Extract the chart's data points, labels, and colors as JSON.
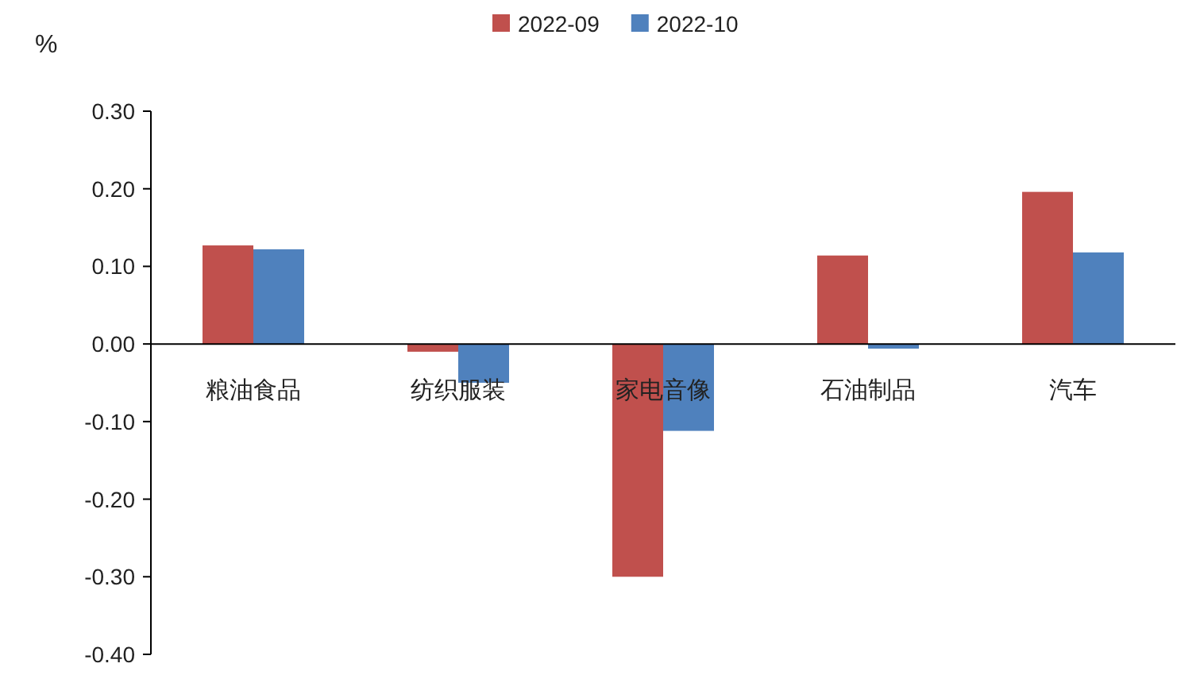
{
  "chart_data": {
    "type": "bar",
    "ylabel": "%",
    "categories": [
      "粮油食品",
      "纺织服装",
      "家电音像",
      "石油制品",
      "汽车"
    ],
    "series": [
      {
        "name": "2022-09",
        "color": "#c0504d",
        "values": [
          0.127,
          -0.01,
          -0.3,
          0.114,
          0.196
        ]
      },
      {
        "name": "2022-10",
        "color": "#4f81bd",
        "values": [
          0.122,
          -0.05,
          -0.112,
          -0.006,
          0.118
        ]
      }
    ],
    "ylim": [
      -0.4,
      0.3
    ],
    "yticks": [
      {
        "value": 0.3,
        "label": "0.30"
      },
      {
        "value": 0.2,
        "label": "0.20"
      },
      {
        "value": 0.1,
        "label": "0.10"
      },
      {
        "value": 0,
        "label": "0.00"
      },
      {
        "value": -0.1,
        "label": "-0.10"
      },
      {
        "value": -0.2,
        "label": "-0.20"
      },
      {
        "value": -0.3,
        "label": "-0.30"
      },
      {
        "value": -0.4,
        "label": "-0.40"
      }
    ],
    "legend": "top"
  }
}
